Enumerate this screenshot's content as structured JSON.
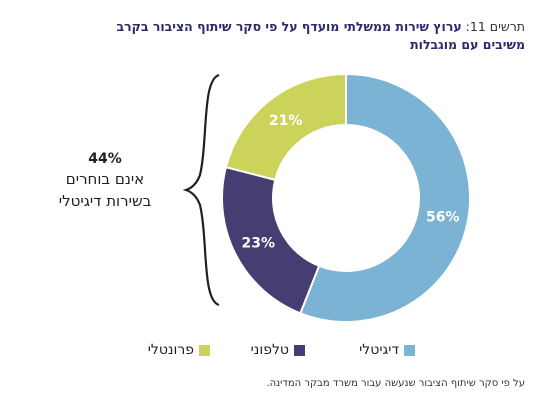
{
  "title": {
    "prefix": "תרשים 11:",
    "main": "ערוץ שירות ממשלתי מועדף על פי סקר שיתוף הציבור בקרב",
    "line2": "משיבים עם מוגבלות"
  },
  "annotation": {
    "percent": "44%",
    "line1": "אינם בוחרים",
    "line2": "בשירות דיגיטלי"
  },
  "source": "על פי סקר שיתוף הציבור שנעשה עבור משרד מבקר המדינה.",
  "colors": {
    "digital": "#7ab3d3",
    "phone": "#463e73",
    "frontal": "#ccd35a"
  },
  "chart_data": {
    "type": "pie",
    "donut": true,
    "slices": [
      {
        "label": "דיגיטלי",
        "value": 56,
        "display": "56%",
        "color": "#7ab3d3"
      },
      {
        "label": "טלפוני",
        "value": 23,
        "display": "23%",
        "color": "#463e73"
      },
      {
        "label": "פרונטלי",
        "value": 21,
        "display": "21%",
        "color": "#ccd35a"
      }
    ],
    "legend_position": "bottom"
  }
}
